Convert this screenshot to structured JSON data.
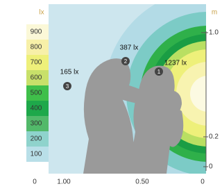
{
  "legend": {
    "unit": "lx",
    "levels": [
      {
        "label": "900",
        "color": "#fbf8d8"
      },
      {
        "label": "800",
        "color": "#f7f0a8"
      },
      {
        "label": "700",
        "color": "#eef07a"
      },
      {
        "label": "600",
        "color": "#c8e06a"
      },
      {
        "label": "500",
        "color": "#3fbf4a"
      },
      {
        "label": "400",
        "color": "#1ea84a"
      },
      {
        "label": "300",
        "color": "#52b96a"
      },
      {
        "label": "200",
        "color": "#8fd3cc"
      },
      {
        "label": "100",
        "color": "#b9dfe8"
      }
    ],
    "zero": "0"
  },
  "x_axis": {
    "labels": [
      "1.00",
      "0.50",
      "0"
    ]
  },
  "right_axis": {
    "unit": "m",
    "labels": [
      "1.0",
      "0.2",
      "0"
    ]
  },
  "annotations": [
    {
      "marker": "3",
      "text": "165 lx"
    },
    {
      "marker": "2",
      "text": "387 lx"
    },
    {
      "marker": "1",
      "text": "1237 lx"
    }
  ]
}
